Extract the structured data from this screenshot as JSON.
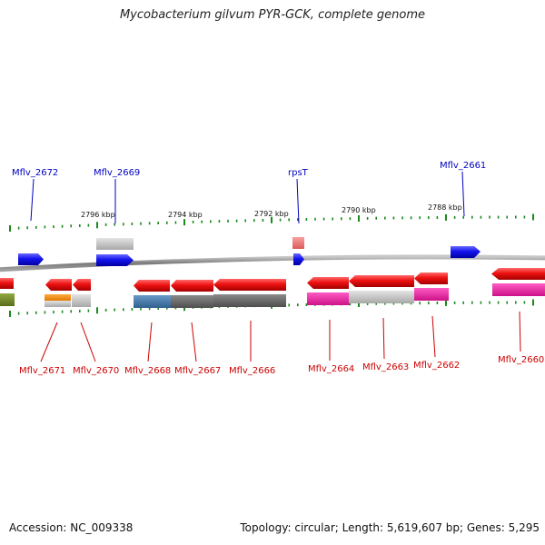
{
  "title": "Mycobacterium gilvum PYR-GCK, complete genome",
  "footer": {
    "accession": "Accession: NC_009338",
    "summary": "Topology: circular; Length: 5,619,607 bp; Genes: 5,295"
  },
  "colors": {
    "background": "#ffffff",
    "backbone": "#8c8c8c",
    "tick": "#1a8a1a",
    "forward_gene": "#1010e0",
    "reverse_gene": "#e81010",
    "top_label": "#0000c0",
    "bottom_label": "#cc0000",
    "rna_gene": "#e87878"
  },
  "kbp_labels": [
    "2796 kbp",
    "2794 kbp",
    "2792 kbp",
    "2790 kbp",
    "2788 kbp"
  ],
  "top_gene_labels": [
    "Mflv_2672",
    "Mflv_2669",
    "rpsT",
    "Mflv_2661"
  ],
  "bottom_gene_labels": [
    "Mflv_2671",
    "Mflv_2670",
    "Mflv_2668",
    "Mflv_2667",
    "Mflv_2666",
    "Mflv_2664",
    "Mflv_2663",
    "Mflv_2662",
    "Mflv_2660"
  ]
}
